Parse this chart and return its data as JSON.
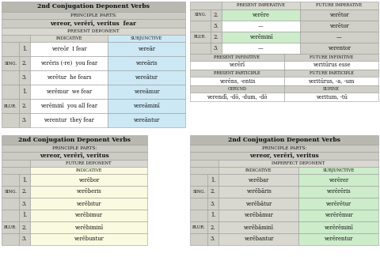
{
  "table1": {
    "title": "2nd Conjugation Deponent Verbs",
    "pp_label": "Principle Parts:",
    "pp_value": "vereor, verērī, veritus  fear",
    "section": "Present Deponent",
    "col1": "Indicative",
    "col2": "Subjunctive",
    "sing_rows": [
      [
        "1.",
        "vereōr  I fear",
        "vereār"
      ],
      [
        "2.",
        "verēris (-re)  you fear",
        "vereāris"
      ],
      [
        "3.",
        "verētur  he fears",
        "vereātur"
      ]
    ],
    "plur_rows": [
      [
        "1.",
        "verēmur  we fear",
        "vereāmur"
      ],
      [
        "2.",
        "verēminī  you all fear",
        "vereāminī"
      ],
      [
        "3.",
        "verentur  they fear",
        "vereāntur"
      ]
    ]
  },
  "table2": {
    "title": "2nd Conjugation Deponent Verbs",
    "pp_label": "Principle Parts:",
    "pp_value": "vereor, verērī, veritus",
    "section": "Future Deponent",
    "col1": "Indicative",
    "sing_rows": [
      [
        "1.",
        "verēbor"
      ],
      [
        "2.",
        "verēberis"
      ],
      [
        "3.",
        "verēbitur"
      ]
    ],
    "plur_rows": [
      [
        "1.",
        "verēbimur"
      ],
      [
        "2.",
        "verēbiminī"
      ],
      [
        "3.",
        "verēbuntur"
      ]
    ]
  },
  "table3": {
    "imp_rows": [
      [
        "Sing.",
        "2.",
        "verēre",
        "verētor"
      ],
      [
        "",
        "3.",
        "—",
        "verētor"
      ],
      [
        "Plur.",
        "2.",
        "verēminī",
        "—"
      ],
      [
        "",
        "3.",
        "—",
        "verentor"
      ]
    ],
    "inf_pres": "verērī",
    "inf_fut": "veritūrus esse",
    "part_pres": "verēns, -entis",
    "part_fut": "veritūrus, -a, -um",
    "gerund": "verendī, -dō, -dum, -dō",
    "supine": "veritum, -tū"
  },
  "table4": {
    "title": "2nd Conjugation Deponent Verbs",
    "pp_label": "Principle Parts:",
    "pp_value": "vereor, verērī, veritus",
    "section": "Imperfect Deponent",
    "col1": "Indicative",
    "col2": "Subjunctive",
    "sing_rows": [
      [
        "1.",
        "verēbar",
        "verērer"
      ],
      [
        "2.",
        "verēbāris",
        "verērēris"
      ],
      [
        "3.",
        "verēbātur",
        "verērētur"
      ]
    ],
    "plur_rows": [
      [
        "1.",
        "verēbāmur",
        "verērēmur"
      ],
      [
        "2.",
        "verēbāminī",
        "verērēminī"
      ],
      [
        "3.",
        "verēbantur",
        "verērentur"
      ]
    ]
  },
  "colors": {
    "title_bg": "#b8b8b0",
    "header_bg": "#ccccC4",
    "section_bg": "#d8d8d0",
    "label_bg": "#d0d0c8",
    "white": "#ffffff",
    "blue": "#cce8f4",
    "green": "#ccecca",
    "yellow": "#fafae0",
    "border": "#999999"
  }
}
